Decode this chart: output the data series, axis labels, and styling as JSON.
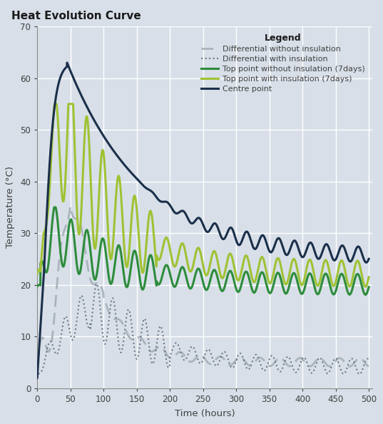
{
  "title": "Heat Evolution Curve",
  "xlabel": "Time (hours)",
  "ylabel": "Temperature (°C)",
  "xlim": [
    0,
    505
  ],
  "ylim": [
    0,
    70
  ],
  "xticks": [
    0,
    50,
    100,
    150,
    200,
    250,
    300,
    350,
    400,
    450,
    500
  ],
  "yticks": [
    0,
    10,
    20,
    30,
    40,
    50,
    60,
    70
  ],
  "background_color": "#d8dfe8",
  "plot_bg_color": "#d8dfe8",
  "grid_color": "#ffffff",
  "legend_title": "Legend",
  "series": {
    "centre_point": {
      "label": "Centre point",
      "color": "#1a2f4a",
      "linewidth": 2.2,
      "linestyle": "solid",
      "zorder": 6
    },
    "top_with_insulation": {
      "label": "Top point with insulation (7days)",
      "color": "#9fc234",
      "linewidth": 2.2,
      "linestyle": "solid",
      "zorder": 5
    },
    "diff_with_insulation": {
      "label": "Differential with insulation",
      "color": "#6e7a87",
      "linewidth": 1.5,
      "linestyle": "dotted",
      "zorder": 3
    },
    "top_without_insulation": {
      "label": "Top point without insulation (7days)",
      "color": "#2d8c3c",
      "linewidth": 2.2,
      "linestyle": "solid",
      "zorder": 4
    },
    "diff_without_insulation": {
      "label": "Differential without insulation",
      "color": "#aab4bc",
      "linewidth": 2.0,
      "linestyle": "dashed",
      "zorder": 2
    }
  }
}
